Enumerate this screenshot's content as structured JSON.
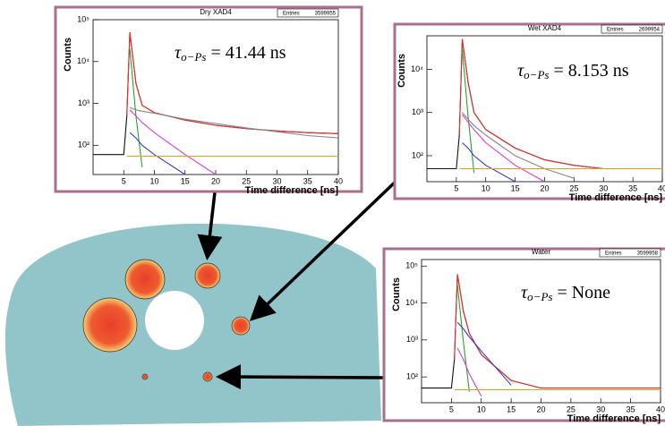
{
  "chart_data": [
    {
      "type": "line",
      "title": "Dry XAD4",
      "stats_label": "Entries",
      "stats_value": "3599955",
      "x_label": "Time difference [ns]",
      "y_label": "Counts",
      "annotation": {
        "symbol": "τ",
        "subscript": "o−Ps",
        "text": "= 41.44 ns"
      },
      "log_y": true,
      "xlim": [
        0,
        40
      ],
      "ylim": [
        20,
        100000
      ],
      "xticks": [
        5,
        10,
        15,
        20,
        25,
        30,
        35,
        40
      ],
      "yticks": [
        {
          "value": 100,
          "label": "10²"
        },
        {
          "value": 1000,
          "label": "10³"
        },
        {
          "value": 10000,
          "label": "10⁴"
        },
        {
          "value": 100000,
          "label": "10⁵"
        }
      ],
      "x": [
        0,
        5,
        5.5,
        6,
        7,
        8,
        10,
        15,
        20,
        25,
        30,
        35,
        40
      ],
      "series": [
        {
          "color": "#111111",
          "values": [
            60,
            60,
            500,
            50000,
            3000,
            900,
            600,
            400,
            300,
            250,
            220,
            200,
            190
          ]
        },
        {
          "color": "#e8312f",
          "values": [
            null,
            null,
            500,
            50000,
            3000,
            900,
            600,
            400,
            300,
            250,
            220,
            200,
            190
          ]
        },
        {
          "color": "#2ca02c",
          "values": [
            null,
            null,
            null,
            20000,
            500,
            30,
            null,
            null,
            null,
            null,
            null,
            null,
            null
          ]
        },
        {
          "color": "#3a3ad0",
          "values": [
            null,
            null,
            null,
            200,
            150,
            100,
            60,
            20,
            null,
            null,
            null,
            null,
            null
          ]
        },
        {
          "color": "#d63cd6",
          "values": [
            null,
            null,
            null,
            700,
            500,
            350,
            200,
            60,
            20,
            null,
            null,
            null,
            null
          ]
        },
        {
          "color": "#888888",
          "values": [
            null,
            null,
            null,
            800,
            700,
            650,
            580,
            420,
            330,
            260,
            210,
            170,
            150
          ]
        },
        {
          "color": "#e5a020",
          "values": [
            null,
            null,
            55,
            55,
            55,
            55,
            55,
            55,
            55,
            55,
            55,
            55,
            55
          ]
        }
      ]
    },
    {
      "type": "line",
      "title": "Wet XAD4",
      "stats_label": "Entries",
      "stats_value": "2699954",
      "x_label": "Time difference [ns]",
      "y_label": "Counts",
      "annotation": {
        "symbol": "τ",
        "subscript": "o−Ps",
        "text": "= 8.153 ns"
      },
      "log_y": true,
      "xlim": [
        0,
        40
      ],
      "ylim": [
        25,
        60000
      ],
      "xticks": [
        5,
        10,
        15,
        20,
        25,
        30,
        35,
        40
      ],
      "yticks": [
        {
          "value": 100,
          "label": "10²"
        },
        {
          "value": 1000,
          "label": "10³"
        },
        {
          "value": 10000,
          "label": "10⁴"
        }
      ],
      "x": [
        0,
        5,
        5.5,
        6,
        7,
        8,
        10,
        15,
        20,
        25,
        30,
        35,
        40
      ],
      "series": [
        {
          "color": "#111111",
          "values": [
            50,
            50,
            300,
            50000,
            5000,
            1000,
            400,
            150,
            80,
            60,
            50,
            50,
            50
          ]
        },
        {
          "color": "#e8312f",
          "values": [
            null,
            null,
            300,
            50000,
            5000,
            1000,
            400,
            150,
            80,
            60,
            50,
            50,
            50
          ]
        },
        {
          "color": "#2ca02c",
          "values": [
            null,
            null,
            null,
            30000,
            800,
            40,
            null,
            null,
            null,
            null,
            null,
            null,
            null
          ]
        },
        {
          "color": "#3a3ad0",
          "values": [
            null,
            null,
            null,
            200,
            150,
            100,
            60,
            25,
            null,
            null,
            null,
            null,
            null
          ]
        },
        {
          "color": "#d63cd6",
          "values": [
            null,
            null,
            null,
            900,
            600,
            400,
            200,
            60,
            25,
            null,
            null,
            null,
            null
          ]
        },
        {
          "color": "#888888",
          "values": [
            null,
            null,
            null,
            1000,
            700,
            500,
            300,
            100,
            50,
            30,
            null,
            null,
            null
          ]
        },
        {
          "color": "#e5a020",
          "values": [
            null,
            null,
            50,
            50,
            50,
            50,
            50,
            50,
            50,
            50,
            50,
            50,
            50
          ]
        }
      ]
    },
    {
      "type": "line",
      "title": "Water",
      "stats_label": "Entries",
      "stats_value": "3599958",
      "x_label": "Time difference [ns]",
      "y_label": "Counts",
      "annotation": {
        "symbol": "τ",
        "subscript": "o−Ps",
        "text": "= None"
      },
      "log_y": true,
      "xlim": [
        0,
        40
      ],
      "ylim": [
        20,
        150000
      ],
      "xticks": [
        5,
        10,
        15,
        20,
        25,
        30,
        35,
        40
      ],
      "yticks": [
        {
          "value": 100,
          "label": "10²"
        },
        {
          "value": 1000,
          "label": "10³"
        },
        {
          "value": 10000,
          "label": "10⁴"
        },
        {
          "value": 100000,
          "label": "10⁵"
        }
      ],
      "x": [
        0,
        5,
        5.5,
        6,
        7,
        8,
        10,
        15,
        20,
        25,
        30,
        35,
        40
      ],
      "series": [
        {
          "color": "#111111",
          "values": [
            50,
            50,
            300,
            60000,
            6000,
            1500,
            400,
            80,
            50,
            50,
            50,
            50,
            50
          ]
        },
        {
          "color": "#e8312f",
          "values": [
            null,
            null,
            300,
            60000,
            6000,
            1500,
            400,
            80,
            50,
            50,
            50,
            50,
            50
          ]
        },
        {
          "color": "#2ca02c",
          "values": [
            null,
            null,
            null,
            30000,
            900,
            40,
            null,
            null,
            null,
            null,
            null,
            null,
            null
          ]
        },
        {
          "color": "#3a3ad0",
          "values": [
            null,
            null,
            null,
            3000,
            2000,
            1200,
            500,
            60,
            null,
            null,
            null,
            null,
            null
          ]
        },
        {
          "color": "#d63cd6",
          "values": [
            null,
            null,
            null,
            600,
            300,
            120,
            30,
            null,
            null,
            null,
            null,
            null,
            null
          ]
        },
        {
          "color": "#e5a020",
          "values": [
            null,
            null,
            45,
            45,
            45,
            45,
            45,
            45,
            45,
            45,
            45,
            45,
            45
          ]
        }
      ]
    }
  ]
}
